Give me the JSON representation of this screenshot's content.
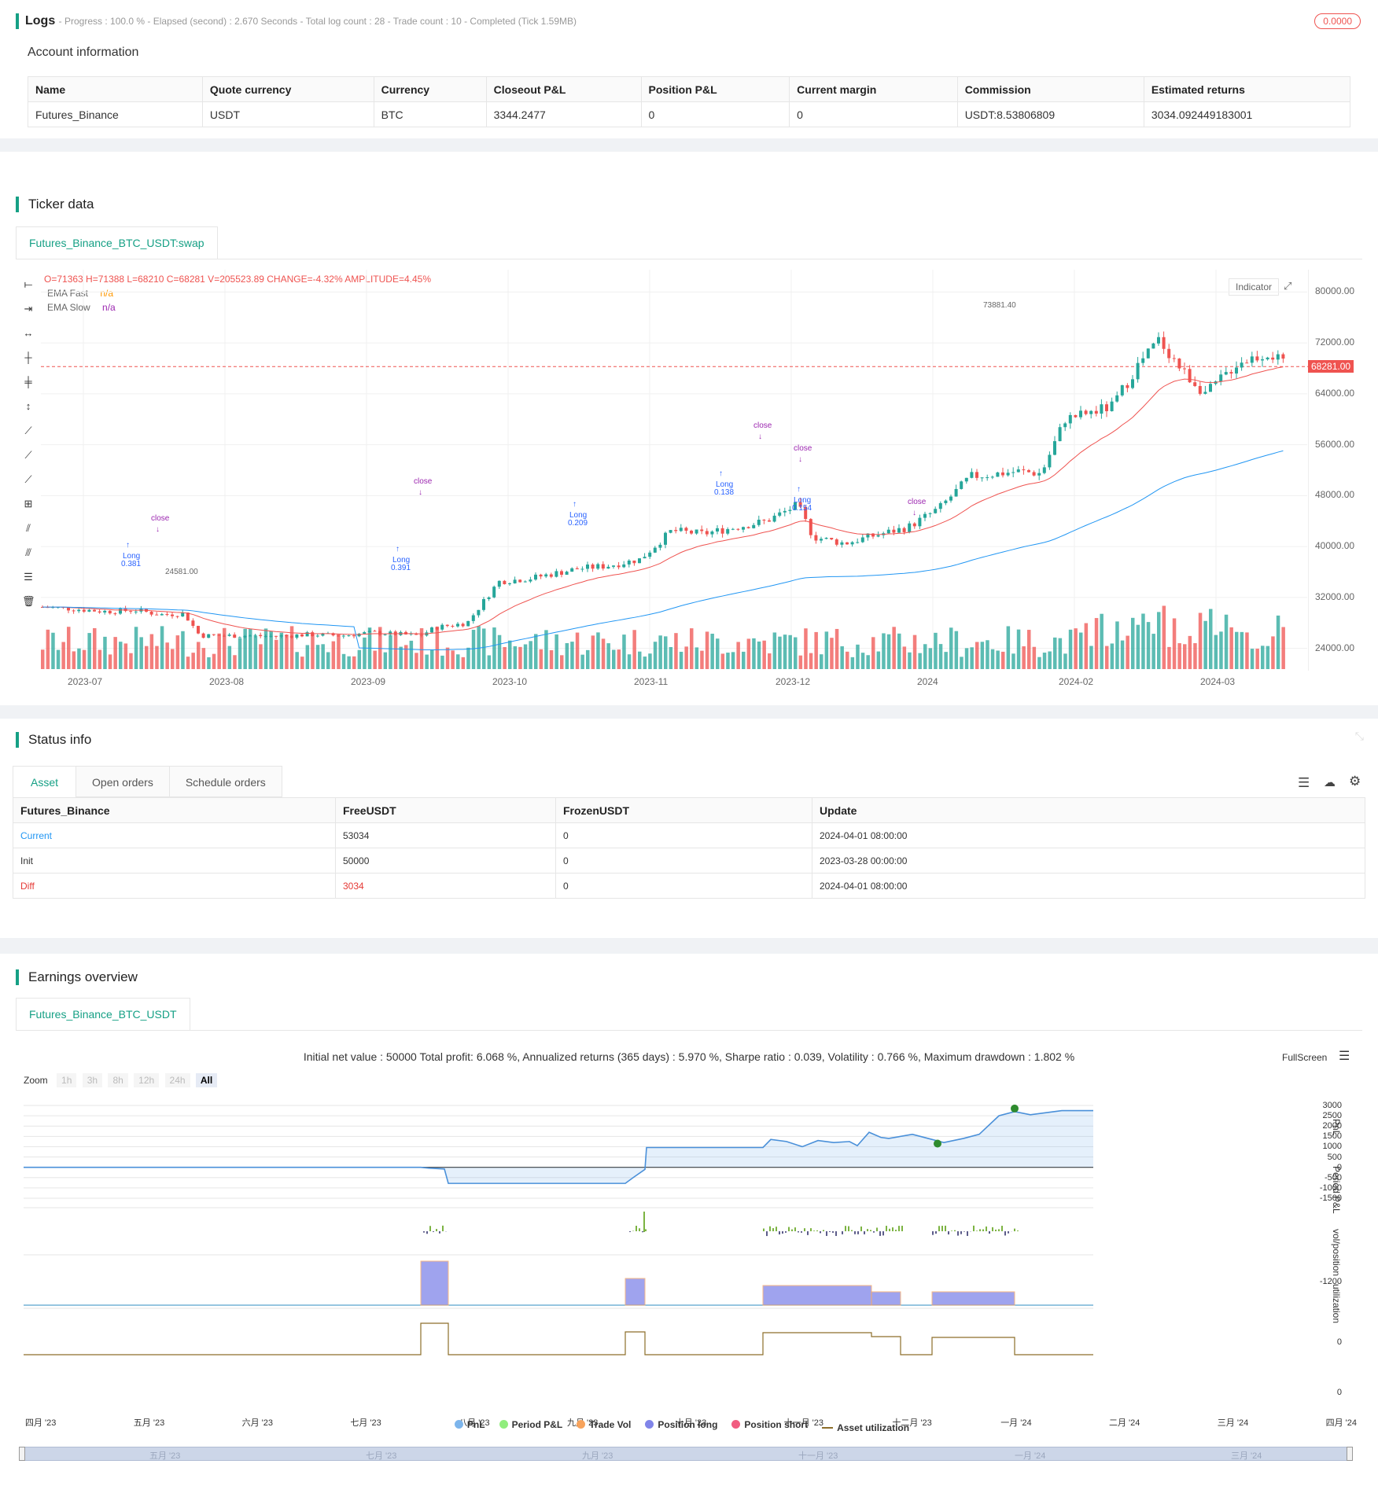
{
  "logs": {
    "title": "Logs",
    "status": "- Progress : 100.0 % - Elapsed (second) : 2.670 Seconds - Total log count : 28 - Trade count : 10 - Completed (Tick 1.59MB)",
    "badge": "0.0000"
  },
  "account": {
    "title": "Account information",
    "headers": [
      "Name",
      "Quote currency",
      "Currency",
      "Closeout P&L",
      "Position P&L",
      "Current margin",
      "Commission",
      "Estimated returns"
    ],
    "row": [
      "Futures_Binance",
      "USDT",
      "BTC",
      "3344.2477",
      "0",
      "0",
      "USDT:8.53806809",
      "3034.092449183001"
    ]
  },
  "ticker": {
    "title": "Ticker data",
    "tab": "Futures_Binance_BTC_USDT:swap",
    "ohlc": "O=71363 H=71388 L=68210 C=68281 V=205523.89 CHANGE=-4.32% AMPLITUDE=4.45%",
    "ema_fast_label": "EMA Fast",
    "ema_fast_value": "n/a",
    "ema_slow_label": "EMA Slow",
    "ema_slow_value": "n/a",
    "indicator_btn": "Indicator",
    "current_price": "68281.00",
    "high_mark": "73881.40",
    "low_mark": "24581.00",
    "y_ticks": [
      "80000.00",
      "72000.00",
      "64000.00",
      "56000.00",
      "48000.00",
      "40000.00",
      "32000.00",
      "24000.00"
    ],
    "x_ticks": [
      "2023-07",
      "2023-08",
      "2023-09",
      "2023-10",
      "2023-11",
      "2023-12",
      "2024",
      "2024-02",
      "2024-03"
    ],
    "annotations": {
      "close": "close",
      "long": "Long",
      "long_lower": "long",
      "qty1": "0.381",
      "qty2": "0.209",
      "qty3": "0.138",
      "qty4": "0.154",
      "qty5": "0.391"
    },
    "colors": {
      "up": "#26a69a",
      "down": "#ef5350",
      "ema_fast": "#ef5350",
      "ema_slow": "#2196f3",
      "signal": "#9c27b0",
      "long": "#2962ff"
    }
  },
  "status": {
    "title": "Status info",
    "tabs": [
      "Asset",
      "Open orders",
      "Schedule orders"
    ],
    "headers": [
      "Futures_Binance",
      "FreeUSDT",
      "FrozenUSDT",
      "Update"
    ],
    "rows": [
      [
        "Current",
        "53034",
        "0",
        "2024-04-01 08:00:00"
      ],
      [
        "Init",
        "50000",
        "0",
        "2023-03-28 00:00:00"
      ],
      [
        "Diff",
        "3034",
        "0",
        "2024-04-01 08:00:00"
      ]
    ]
  },
  "earnings": {
    "title": "Earnings overview",
    "tab": "Futures_Binance_BTC_USDT",
    "summary": "Initial net value : 50000 Total profit: 6.068 %, Annualized returns (365 days) : 5.970 %, Sharpe ratio : 0.039, Volatility : 0.766 %, Maximum drawdown : 1.802 %",
    "fullscreen": "FullScreen",
    "zoom_label": "Zoom",
    "zoom_options": [
      "1h",
      "3h",
      "8h",
      "12h",
      "24h",
      "All"
    ],
    "pnl_ticks": [
      "3000",
      "2500",
      "2000",
      "1500",
      "1000",
      "500",
      "0",
      "-500",
      "-1000",
      "-1500"
    ],
    "period_tick": "-1200",
    "vol_tick": "0",
    "util_tick": "0",
    "axis_titles": [
      "PnL",
      "Period P&L",
      "vol/position",
      "utilization"
    ],
    "x_ticks": [
      "四月 '23",
      "五月 '23",
      "六月 '23",
      "七月 '23",
      "八月 '23",
      "九月 '23",
      "十月 '23",
      "十一月 '23",
      "十二月 '23",
      "一月 '24",
      "二月 '24",
      "三月 '24",
      "四月 '24"
    ],
    "navigator_ticks": [
      "五月 '23",
      "七月 '23",
      "九月 '23",
      "十一月 '23",
      "一月 '24",
      "三月 '24"
    ],
    "legend": [
      {
        "label": "PnL",
        "color": "#7cb5ec"
      },
      {
        "label": "Period P&L",
        "color": "#90ed7d"
      },
      {
        "label": "Trade Vol",
        "color": "#f7a35c"
      },
      {
        "label": "Position long",
        "color": "#8085e9"
      },
      {
        "label": "Position short",
        "color": "#f15c80"
      },
      {
        "label": "Asset utilization",
        "color": "#8d6e2a"
      }
    ]
  }
}
